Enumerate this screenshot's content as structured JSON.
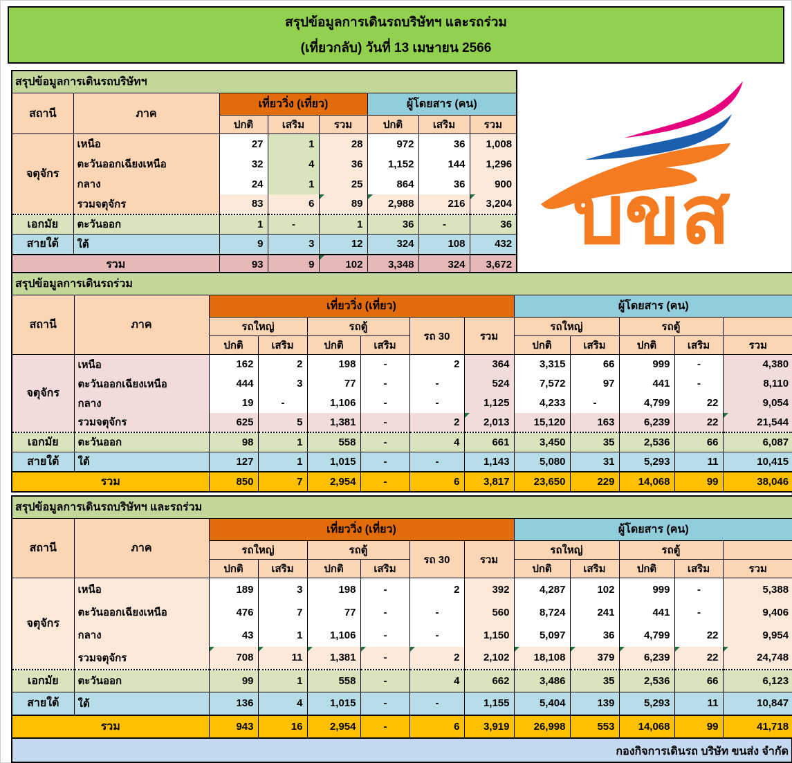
{
  "page": {
    "title_line1": "สรุปข้อมูลการเดินรถบริษัทฯ และรถร่วม",
    "title_line2": "(เที่ยวกลับ) วันที่ 13 เมษายน  2566",
    "footer": "กองกิจการเดินรถ บริษัท ขนส่ง จำกัด"
  },
  "labels": {
    "station": "สถานี",
    "region": "ภาค",
    "trips": "เที่ยววิ่ง (เที่ยว)",
    "passengers": "ผู้โดยสาร (คน)",
    "normal": "ปกติ",
    "extra": "เสริม",
    "total": "รวม",
    "big_bus": "รถใหญ่",
    "van": "รถตู้",
    "bus30": "รถ 30",
    "blank": ""
  },
  "colors": {
    "title_bg": "#92D050",
    "section_title_bg": "#C4D79B",
    "header_peach": "#FCD5B4",
    "trips_header_orange": "#E26B0A",
    "passengers_header_blue": "#92CDDC",
    "light_peach": "#FDE9D9",
    "light_green": "#D8E4BC",
    "light_blue": "#B7DEE8",
    "rose_total": "#E6B8B7",
    "light_pink": "#F2DCDB",
    "gold_total": "#FFC000",
    "footer_bg": "#C5D9F1",
    "excel_indicator_green": "#217346",
    "logo_pink": "#E6007E",
    "logo_blue": "#1B5FAF",
    "logo_orange": "#F47B20"
  },
  "logo": {
    "text": "บขส"
  },
  "tables": {
    "company": {
      "title": "สรุปข้อมูลการเดินรถบริษัทฯ",
      "rows": [
        {
          "station": "จตุจักร",
          "station_rowspan": 4,
          "region": "เหนือ",
          "style": "body",
          "cells": [
            "27",
            "1",
            "28",
            "972",
            "36",
            "1,008"
          ]
        },
        {
          "region": "ตะวันออกเฉียงเหนือ",
          "style": "body",
          "cells": [
            "32",
            "4",
            "36",
            "1,152",
            "144",
            "1,296"
          ]
        },
        {
          "region": "กลาง",
          "style": "body",
          "cells": [
            "24",
            "1",
            "25",
            "864",
            "36",
            "900"
          ]
        },
        {
          "region": "รวมจตุจักร",
          "style": "subtotal",
          "cells": [
            "83",
            "6",
            "89",
            "2,988",
            "216",
            "3,204"
          ],
          "tri": [
            2,
            3,
            5
          ]
        },
        {
          "station": "เอกมัย",
          "station_rowspan": 1,
          "region": "ตะวันออก",
          "style": "east",
          "cells": [
            "1",
            "-",
            "1",
            "36",
            "-",
            "36"
          ]
        },
        {
          "station": "สายใต้",
          "station_rowspan": 1,
          "region": "ใต้",
          "style": "south",
          "cells": [
            "9",
            "3",
            "12",
            "324",
            "108",
            "432"
          ]
        },
        {
          "grand_label": "รวม",
          "style": "grand",
          "cells": [
            "93",
            "9",
            "102",
            "3,348",
            "324",
            "3,672"
          ],
          "tri": [
            2
          ]
        }
      ]
    },
    "joint": {
      "title": "สรุปข้อมูลการเดินรถร่วม",
      "rows": [
        {
          "station": "จตุจักร",
          "station_rowspan": 4,
          "region": "เหนือ",
          "style": "body",
          "cells": [
            "162",
            "2",
            "198",
            "-",
            "2",
            "364",
            "3,315",
            "66",
            "999",
            "-",
            "4,380"
          ]
        },
        {
          "region": "ตะวันออกเฉียงเหนือ",
          "style": "body",
          "cells": [
            "444",
            "3",
            "77",
            "-",
            "-",
            "524",
            "7,572",
            "97",
            "441",
            "-",
            "8,110"
          ]
        },
        {
          "region": "กลาง",
          "style": "body",
          "cells": [
            "19",
            "-",
            "1,106",
            "-",
            "-",
            "1,125",
            "4,233",
            "-",
            "4,799",
            "22",
            "9,054"
          ]
        },
        {
          "region": "รวมจตุจักร",
          "style": "subtotal",
          "cells": [
            "625",
            "5",
            "1,381",
            "-",
            "2",
            "2,013",
            "15,120",
            "163",
            "6,239",
            "22",
            "21,544"
          ],
          "tri": [
            5,
            10
          ]
        },
        {
          "station": "เอกมัย",
          "station_rowspan": 1,
          "region": "ตะวันออก",
          "style": "east",
          "cells": [
            "98",
            "1",
            "558",
            "-",
            "4",
            "661",
            "3,450",
            "35",
            "2,536",
            "66",
            "6,087"
          ]
        },
        {
          "station": "สายใต้",
          "station_rowspan": 1,
          "region": "ใต้",
          "style": "south",
          "cells": [
            "127",
            "1",
            "1,015",
            "-",
            "-",
            "1,143",
            "5,080",
            "31",
            "5,293",
            "11",
            "10,415"
          ]
        },
        {
          "grand_label": "รวม",
          "style": "grand",
          "cells": [
            "850",
            "7",
            "2,954",
            "-",
            "6",
            "3,817",
            "23,650",
            "229",
            "14,068",
            "99",
            "38,046"
          ]
        }
      ]
    },
    "combined": {
      "title": "สรุปข้อมูลการเดินรถบริษัทฯ และรถร่วม",
      "rows": [
        {
          "station": "จตุจักร",
          "station_rowspan": 4,
          "region": "เหนือ",
          "style": "body",
          "cells": [
            "189",
            "3",
            "198",
            "-",
            "2",
            "392",
            "4,287",
            "102",
            "999",
            "-",
            "5,388"
          ]
        },
        {
          "region": "ตะวันออกเฉียงเหนือ",
          "style": "body",
          "cells": [
            "476",
            "7",
            "77",
            "-",
            "-",
            "560",
            "8,724",
            "241",
            "441",
            "-",
            "9,406"
          ]
        },
        {
          "region": "กลาง",
          "style": "body",
          "cells": [
            "43",
            "1",
            "1,106",
            "-",
            "-",
            "1,150",
            "5,097",
            "36",
            "4,799",
            "22",
            "9,954"
          ]
        },
        {
          "region": "รวมจตุจักร",
          "style": "subtotal",
          "cells": [
            "708",
            "11",
            "1,381",
            "-",
            "2",
            "2,102",
            "18,108",
            "379",
            "6,239",
            "22",
            "24,748"
          ],
          "tri": [
            0,
            1,
            2,
            3,
            4,
            6,
            7,
            8,
            9,
            10
          ]
        },
        {
          "station": "เอกมัย",
          "station_rowspan": 1,
          "region": "ตะวันออก",
          "style": "east",
          "cells": [
            "99",
            "1",
            "558",
            "-",
            "4",
            "662",
            "3,486",
            "35",
            "2,536",
            "66",
            "6,123"
          ]
        },
        {
          "station": "สายใต้",
          "station_rowspan": 1,
          "region": "ใต้",
          "style": "south",
          "cells": [
            "136",
            "4",
            "1,015",
            "-",
            "-",
            "1,155",
            "5,404",
            "139",
            "5,293",
            "11",
            "10,847"
          ]
        },
        {
          "grand_label": "รวม",
          "style": "grand",
          "cells": [
            "943",
            "16",
            "2,954",
            "-",
            "6",
            "3,919",
            "26,998",
            "553",
            "14,068",
            "99",
            "41,718"
          ]
        }
      ]
    }
  }
}
